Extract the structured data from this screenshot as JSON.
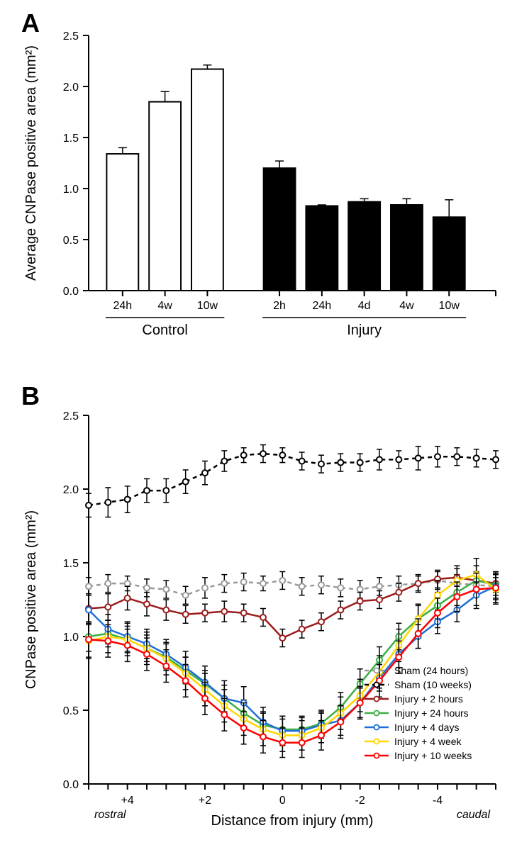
{
  "panelA": {
    "label": "A",
    "type": "bar",
    "ylabel": "Average CNPase positive area (mm²)",
    "ylim": [
      0,
      2.5
    ],
    "ytick_step": 0.5,
    "groups": [
      {
        "name": "Control",
        "bars": [
          {
            "label": "24h",
            "value": 1.34,
            "err": 0.06
          },
          {
            "label": "4w",
            "value": 1.85,
            "err": 0.1
          },
          {
            "label": "10w",
            "value": 2.17,
            "err": 0.04
          }
        ],
        "fill": "#ffffff",
        "stroke": "#000000"
      },
      {
        "name": "Injury",
        "bars": [
          {
            "label": "2h",
            "value": 1.2,
            "err": 0.07
          },
          {
            "label": "24h",
            "value": 0.83,
            "err": 0.01
          },
          {
            "label": "4d",
            "value": 0.87,
            "err": 0.03
          },
          {
            "label": "4w",
            "value": 0.84,
            "err": 0.06
          },
          {
            "label": "10w",
            "value": 0.72,
            "err": 0.17
          }
        ],
        "fill": "#000000",
        "stroke": "#000000"
      }
    ],
    "bar_width": 0.75,
    "label_fontsize": 16,
    "axis_fontsize": 20
  },
  "panelB": {
    "label": "B",
    "type": "line",
    "ylabel": "CNPase positive area (mm²)",
    "xlabel": "Distance from injury (mm)",
    "x_rostral": "rostral",
    "x_caudal": "caudal",
    "ylim": [
      0,
      2.5
    ],
    "ytick_step": 0.5,
    "xvals": [
      5,
      4.5,
      4,
      3.5,
      3,
      2.5,
      2,
      1.5,
      1,
      0.5,
      0,
      -0.5,
      -1,
      -1.5,
      -2,
      -2.5,
      -3,
      -3.5,
      -4,
      -4.5,
      -5,
      -5.5
    ],
    "xtick_labels": {
      "4": "+4",
      "2": "+2",
      "0": "0",
      "-2": "-2",
      "-4": "-4"
    },
    "series": [
      {
        "name": "Sham (24 hours)",
        "color": "#999999",
        "dash": "6,5",
        "marker": true,
        "y": [
          1.34,
          1.36,
          1.36,
          1.33,
          1.32,
          1.28,
          1.33,
          1.36,
          1.37,
          1.36,
          1.38,
          1.34,
          1.35,
          1.33,
          1.32,
          1.34,
          1.35,
          1.36,
          1.38,
          1.36,
          1.35,
          1.34
        ],
        "err": [
          0.06,
          0.06,
          0.05,
          0.06,
          0.06,
          0.06,
          0.07,
          0.06,
          0.06,
          0.05,
          0.06,
          0.06,
          0.06,
          0.06,
          0.06,
          0.06,
          0.06,
          0.05,
          0.06,
          0.06,
          0.06,
          0.06
        ]
      },
      {
        "name": "Sham (10 weeks)",
        "color": "#000000",
        "dash": "6,5",
        "marker": true,
        "y": [
          1.89,
          1.91,
          1.93,
          1.99,
          1.99,
          2.05,
          2.11,
          2.19,
          2.23,
          2.24,
          2.23,
          2.19,
          2.17,
          2.18,
          2.18,
          2.2,
          2.2,
          2.21,
          2.22,
          2.22,
          2.21,
          2.2
        ],
        "err": [
          0.08,
          0.1,
          0.09,
          0.08,
          0.08,
          0.08,
          0.08,
          0.07,
          0.05,
          0.06,
          0.05,
          0.06,
          0.06,
          0.06,
          0.06,
          0.07,
          0.06,
          0.08,
          0.07,
          0.06,
          0.06,
          0.06
        ]
      },
      {
        "name": "Injury + 2 hours",
        "color": "#9b1c1c",
        "dash": "",
        "marker": true,
        "y": [
          1.19,
          1.2,
          1.26,
          1.22,
          1.18,
          1.15,
          1.16,
          1.17,
          1.16,
          1.13,
          0.99,
          1.05,
          1.1,
          1.18,
          1.24,
          1.25,
          1.3,
          1.36,
          1.39,
          1.4,
          1.38,
          1.36
        ],
        "err": [
          0.1,
          0.09,
          0.08,
          0.08,
          0.07,
          0.06,
          0.06,
          0.07,
          0.06,
          0.06,
          0.06,
          0.06,
          0.06,
          0.06,
          0.06,
          0.06,
          0.06,
          0.06,
          0.06,
          0.06,
          0.06,
          0.06
        ]
      },
      {
        "name": "Injury + 24 hours",
        "color": "#3cb043",
        "dash": "",
        "marker": true,
        "y": [
          1.0,
          1.02,
          0.98,
          0.92,
          0.86,
          0.77,
          0.68,
          0.58,
          0.48,
          0.4,
          0.37,
          0.37,
          0.41,
          0.52,
          0.68,
          0.84,
          1.0,
          1.12,
          1.21,
          1.3,
          1.38,
          1.35
        ],
        "err": [
          0.1,
          0.09,
          0.09,
          0.09,
          0.09,
          0.09,
          0.09,
          0.09,
          0.09,
          0.09,
          0.09,
          0.09,
          0.09,
          0.1,
          0.1,
          0.09,
          0.09,
          0.09,
          0.09,
          0.09,
          0.1,
          0.09
        ]
      },
      {
        "name": "Injury + 4 days",
        "color": "#1f6fd6",
        "dash": "",
        "marker": true,
        "y": [
          1.18,
          1.05,
          1.0,
          0.95,
          0.88,
          0.79,
          0.69,
          0.58,
          0.55,
          0.42,
          0.36,
          0.36,
          0.4,
          0.43,
          0.55,
          0.72,
          0.88,
          1.0,
          1.1,
          1.18,
          1.28,
          1.34
        ],
        "err": [
          0.1,
          0.1,
          0.1,
          0.1,
          0.1,
          0.11,
          0.11,
          0.12,
          0.11,
          0.1,
          0.1,
          0.09,
          0.09,
          0.1,
          0.1,
          0.09,
          0.09,
          0.08,
          0.08,
          0.08,
          0.09,
          0.09
        ]
      },
      {
        "name": "Injury + 4 week",
        "color": "#ffd700",
        "dash": "",
        "marker": true,
        "y": [
          0.97,
          1.0,
          0.98,
          0.92,
          0.85,
          0.75,
          0.64,
          0.53,
          0.44,
          0.37,
          0.33,
          0.33,
          0.38,
          0.48,
          0.6,
          0.76,
          0.94,
          1.12,
          1.28,
          1.38,
          1.42,
          1.32
        ],
        "err": [
          0.12,
          0.11,
          0.11,
          0.11,
          0.11,
          0.11,
          0.11,
          0.11,
          0.11,
          0.11,
          0.11,
          0.1,
          0.1,
          0.11,
          0.11,
          0.11,
          0.11,
          0.1,
          0.1,
          0.1,
          0.11,
          0.1
        ]
      },
      {
        "name": "Injury + 10 weeks",
        "color": "#ff0000",
        "dash": "",
        "marker": true,
        "y": [
          0.98,
          0.97,
          0.94,
          0.88,
          0.8,
          0.7,
          0.58,
          0.47,
          0.38,
          0.32,
          0.28,
          0.28,
          0.33,
          0.42,
          0.55,
          0.7,
          0.86,
          1.02,
          1.16,
          1.27,
          1.32,
          1.33
        ],
        "err": [
          0.12,
          0.11,
          0.11,
          0.11,
          0.11,
          0.11,
          0.11,
          0.11,
          0.11,
          0.11,
          0.1,
          0.1,
          0.1,
          0.11,
          0.11,
          0.11,
          0.11,
          0.1,
          0.1,
          0.1,
          0.11,
          0.1
        ]
      }
    ]
  }
}
